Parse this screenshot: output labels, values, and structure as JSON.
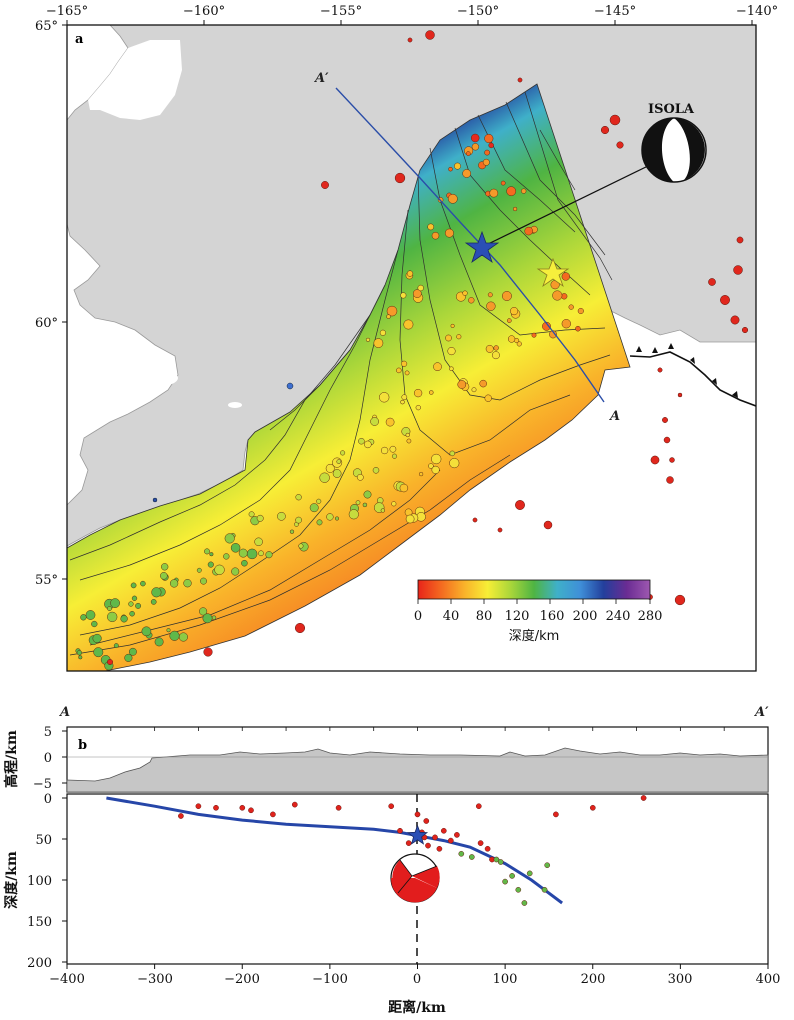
{
  "map": {
    "panel_label": "a",
    "lon_ticks": [
      "−165°",
      "−160°",
      "−155°",
      "−150°",
      "−145°",
      "−140°"
    ],
    "lat_ticks": [
      "65°",
      "60°",
      "55°"
    ],
    "profile_start_label": "A",
    "profile_end_label": "A′",
    "isola_label": "ISOLA",
    "colorbar": {
      "ticks": [
        "0",
        "40",
        "80",
        "120",
        "160",
        "200",
        "240",
        "280"
      ],
      "label": "深度/km",
      "colors": [
        "#e8241a",
        "#f46a20",
        "#f9b22a",
        "#f7ee36",
        "#a9d63a",
        "#4fb443",
        "#3fb0c9",
        "#3f8fd8",
        "#233f9c",
        "#6a2c93",
        "#9e58b0"
      ]
    },
    "colors": {
      "land": "#d4d4d4",
      "water": "#ffffff",
      "profile_line": "#2b4ea8",
      "mainshock_star": "#2a4fb5",
      "secondary_star": "#f6ef3c"
    }
  },
  "section": {
    "panel_label": "b",
    "left_label": "A",
    "right_label": "A′",
    "elev_ylabel": "高程/km",
    "elev_ticks": [
      "5",
      "0",
      "−5"
    ],
    "depth_ylabel": "深度/km",
    "depth_ticks": [
      "0",
      "50",
      "100",
      "150",
      "200"
    ],
    "x_ticks": [
      "−400",
      "−300",
      "−200",
      "−100",
      "0",
      "100",
      "200",
      "300",
      "400"
    ],
    "xlabel": "距离/km"
  },
  "chart_data": {
    "type": "scatter",
    "xlabel": "距离/km",
    "ylabel": "深度/km",
    "xlim": [
      -400,
      400
    ],
    "ylim": [
      200,
      0
    ],
    "slab_interface": {
      "x": [
        -355,
        -300,
        -250,
        -200,
        -150,
        -100,
        -50,
        -20,
        0,
        30,
        60,
        100,
        130,
        165
      ],
      "y": [
        0,
        10,
        20,
        27,
        32,
        35,
        38,
        42,
        46,
        52,
        60,
        80,
        100,
        128
      ]
    },
    "mainshock": {
      "x": 0,
      "y": 46
    },
    "events": [
      {
        "x": -270,
        "y": 22,
        "c": "red"
      },
      {
        "x": -250,
        "y": 10,
        "c": "red"
      },
      {
        "x": -230,
        "y": 12,
        "c": "red"
      },
      {
        "x": -200,
        "y": 12,
        "c": "red"
      },
      {
        "x": -190,
        "y": 15,
        "c": "red"
      },
      {
        "x": -165,
        "y": 20,
        "c": "red"
      },
      {
        "x": -140,
        "y": 8,
        "c": "red"
      },
      {
        "x": -90,
        "y": 12,
        "c": "red"
      },
      {
        "x": -30,
        "y": 10,
        "c": "red"
      },
      {
        "x": -20,
        "y": 40,
        "c": "red"
      },
      {
        "x": -10,
        "y": 55,
        "c": "red"
      },
      {
        "x": 0,
        "y": 20,
        "c": "red"
      },
      {
        "x": 5,
        "y": 42,
        "c": "red"
      },
      {
        "x": 8,
        "y": 48,
        "c": "red"
      },
      {
        "x": 10,
        "y": 28,
        "c": "red"
      },
      {
        "x": 12,
        "y": 58,
        "c": "red"
      },
      {
        "x": 20,
        "y": 48,
        "c": "red"
      },
      {
        "x": 25,
        "y": 62,
        "c": "red"
      },
      {
        "x": 30,
        "y": 40,
        "c": "red"
      },
      {
        "x": 38,
        "y": 52,
        "c": "red"
      },
      {
        "x": 45,
        "y": 45,
        "c": "red"
      },
      {
        "x": 70,
        "y": 10,
        "c": "red"
      },
      {
        "x": 72,
        "y": 55,
        "c": "red"
      },
      {
        "x": 80,
        "y": 62,
        "c": "red"
      },
      {
        "x": 85,
        "y": 75,
        "c": "red"
      },
      {
        "x": 158,
        "y": 20,
        "c": "red"
      },
      {
        "x": 200,
        "y": 12,
        "c": "red"
      },
      {
        "x": 258,
        "y": 0,
        "c": "red"
      },
      {
        "x": 50,
        "y": 68,
        "c": "green"
      },
      {
        "x": 62,
        "y": 72,
        "c": "green"
      },
      {
        "x": 90,
        "y": 75,
        "c": "green"
      },
      {
        "x": 95,
        "y": 78,
        "c": "green"
      },
      {
        "x": 100,
        "y": 102,
        "c": "green"
      },
      {
        "x": 108,
        "y": 95,
        "c": "green"
      },
      {
        "x": 115,
        "y": 112,
        "c": "green"
      },
      {
        "x": 122,
        "y": 128,
        "c": "green"
      },
      {
        "x": 128,
        "y": 92,
        "c": "green"
      },
      {
        "x": 145,
        "y": 112,
        "c": "green"
      },
      {
        "x": 148,
        "y": 82,
        "c": "green"
      }
    ]
  }
}
